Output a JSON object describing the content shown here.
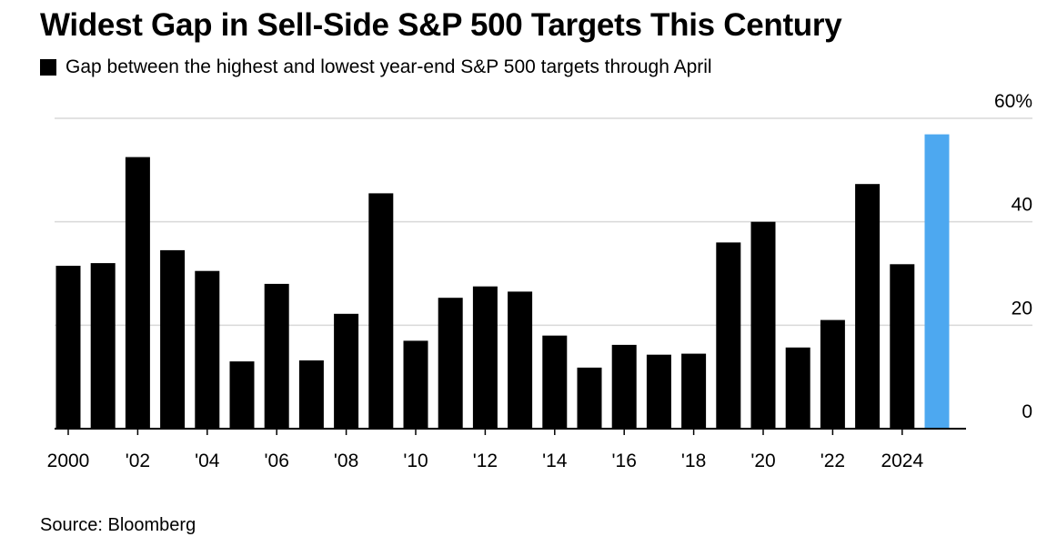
{
  "title": "Widest Gap in Sell-Side S&P 500 Targets This Century",
  "legend": {
    "label": "Gap between the highest and lowest year-end S&P 500 targets through April"
  },
  "source": "Source: Bloomberg",
  "colors": {
    "bar": "#000000",
    "highlight": "#4DA8F0",
    "grid": "#d9d9d9"
  },
  "chart_data": {
    "type": "bar",
    "title": "Widest Gap in Sell-Side S&P 500 Targets This Century",
    "xlabel": "",
    "ylabel": "",
    "ylim": [
      0,
      60
    ],
    "y_ticks": [
      0,
      20,
      40,
      60
    ],
    "y_tick_labels": [
      "0",
      "20",
      "40",
      "60%"
    ],
    "categories": [
      "2000",
      "2001",
      "2002",
      "2003",
      "2004",
      "2005",
      "2006",
      "2007",
      "2008",
      "2009",
      "2010",
      "2011",
      "2012",
      "2013",
      "2014",
      "2015",
      "2016",
      "2017",
      "2018",
      "2019",
      "2020",
      "2021",
      "2022",
      "2023",
      "2024",
      "2025"
    ],
    "x_tick_labels": [
      "2000",
      "",
      "'02",
      "",
      "'04",
      "",
      "'06",
      "",
      "'08",
      "",
      "'10",
      "",
      "'12",
      "",
      "'14",
      "",
      "'16",
      "",
      "'18",
      "",
      "'20",
      "",
      "'22",
      "",
      "2024",
      ""
    ],
    "values": [
      31.5,
      32,
      52.5,
      34.5,
      30.5,
      13,
      28,
      13.2,
      22.2,
      45.5,
      17,
      25.3,
      27.5,
      26.5,
      18,
      11.8,
      16.2,
      14.3,
      14.5,
      36,
      40,
      15.7,
      21,
      47.3,
      31.8,
      56.9
    ],
    "highlight_index": 25,
    "grid": true,
    "legend_position": "top-left"
  }
}
